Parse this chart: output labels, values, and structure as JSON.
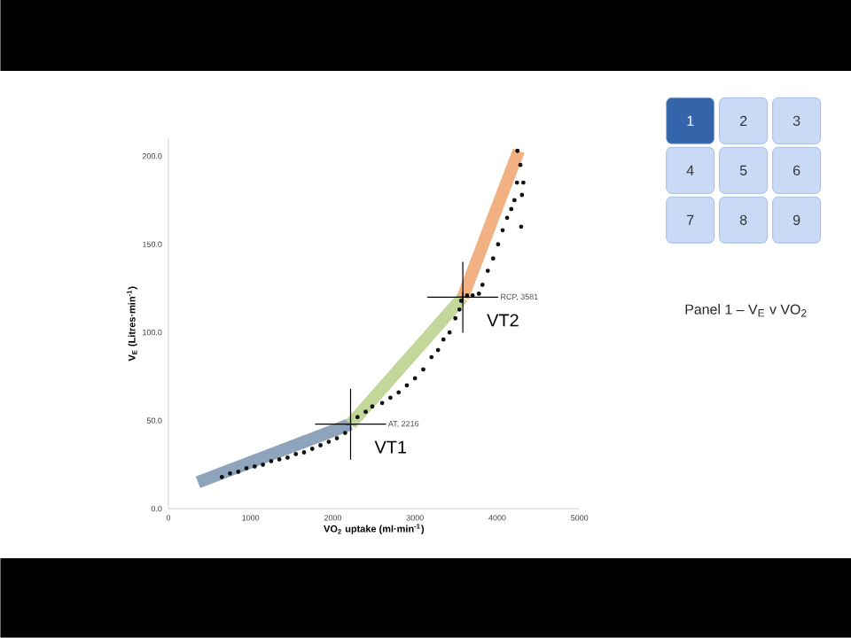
{
  "chart_data": {
    "type": "scatter",
    "xlabel": "VO$_{2}$ uptake (ml·min$^{-1}$)",
    "ylabel": "V$_{E}$ (Litres·min$^{-1}$)",
    "xlim": [
      0,
      5000
    ],
    "ylim": [
      0,
      210
    ],
    "xticks": [
      0,
      1000,
      2000,
      3000,
      4000,
      5000
    ],
    "yticks": [
      {
        "value": 0,
        "label": "0.0"
      },
      {
        "value": 50,
        "label": "50.0"
      },
      {
        "value": 100,
        "label": "100.0"
      },
      {
        "value": 150,
        "label": "150.0"
      },
      {
        "value": 200,
        "label": "200.0"
      }
    ],
    "grid": false,
    "series": [
      {
        "type": "line",
        "color": "#8ea4bd",
        "x": [
          360,
          2216
        ],
        "values": [
          15,
          48
        ]
      },
      {
        "type": "line",
        "color": "#c4d79b",
        "x": [
          2216,
          3581
        ],
        "values": [
          48,
          120
        ]
      },
      {
        "type": "line",
        "color": "#f2b183",
        "x": [
          3581,
          4260
        ],
        "values": [
          120,
          203
        ]
      },
      {
        "marker": "circle",
        "color": "#111111",
        "x": [
          650,
          750,
          850,
          950,
          1050,
          1150,
          1250,
          1350,
          1450,
          1550,
          1650,
          1750,
          1850,
          1950,
          2050,
          2150,
          2230,
          2300,
          2400,
          2480,
          2600,
          2700,
          2800,
          2900,
          3000,
          3100,
          3200,
          3280,
          3345,
          3420,
          3490,
          3540,
          3561,
          3633,
          3700,
          3777,
          3820,
          3885,
          3950,
          4010,
          4065,
          4120,
          4170,
          4209,
          4240,
          4281,
          4245,
          4300,
          4317,
          4290
        ],
        "values": [
          18,
          20,
          21,
          23,
          24,
          25,
          27,
          28,
          29,
          31,
          32,
          34,
          36,
          38,
          40,
          43,
          null,
          52,
          55,
          58,
          60,
          63,
          66,
          70,
          74,
          79,
          86,
          90,
          96,
          100,
          108,
          113,
          118,
          121,
          121,
          122,
          127,
          135,
          142,
          150,
          158,
          165,
          170,
          175,
          185,
          195,
          203,
          178,
          185,
          160
        ]
      },
      {
        "marker": "cross",
        "color": "#000000",
        "x": [
          2216,
          3581
        ],
        "values": [
          48,
          120
        ]
      }
    ],
    "annotations": [
      "AT, 2216",
      "VT1",
      "RCP, 3581",
      "VT2",
      "1",
      "2",
      "3",
      "4",
      "5",
      "6",
      "7",
      "8",
      "9",
      "Panel 1 – V$_{E}$ v VO$_{2}$"
    ]
  }
}
